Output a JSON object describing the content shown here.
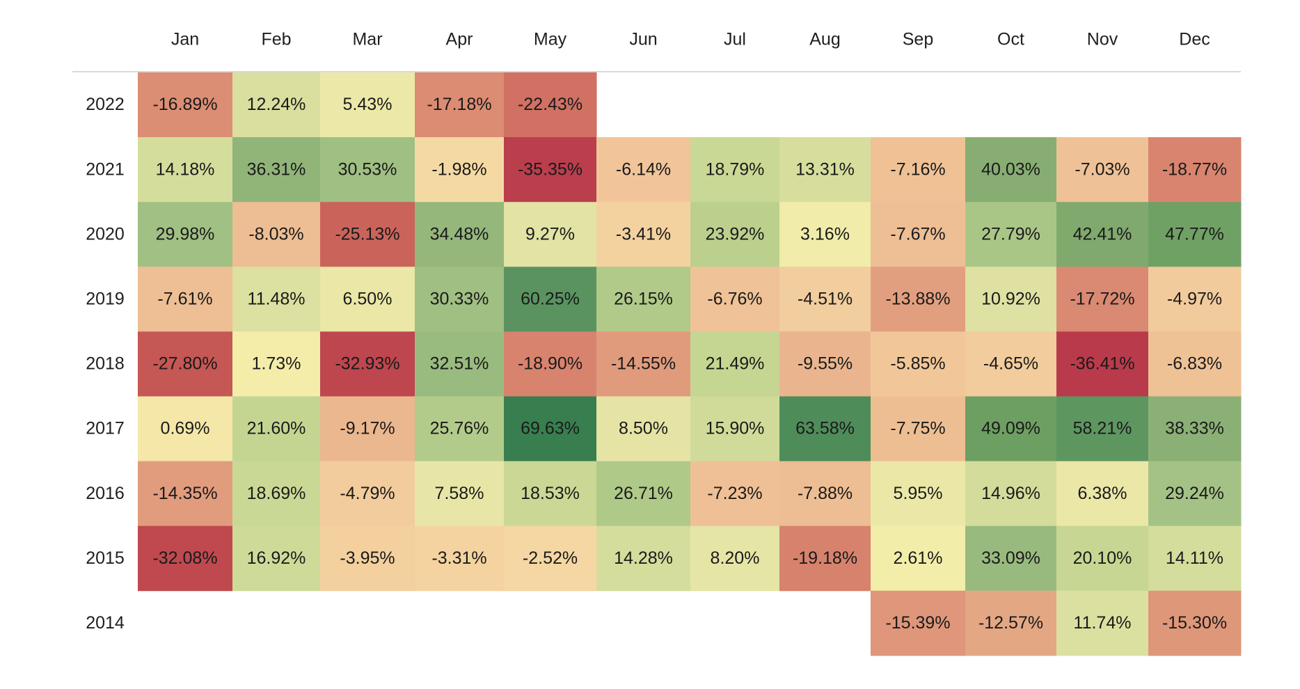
{
  "chart_data": {
    "type": "heatmap",
    "title": "",
    "xlabel": "",
    "ylabel": "",
    "value_format": "percent",
    "columns": [
      "Jan",
      "Feb",
      "Mar",
      "Apr",
      "May",
      "Jun",
      "Jul",
      "Aug",
      "Sep",
      "Oct",
      "Nov",
      "Dec"
    ],
    "rows": [
      "2022",
      "2021",
      "2020",
      "2019",
      "2018",
      "2017",
      "2016",
      "2015",
      "2014"
    ],
    "values": [
      [
        -16.89,
        12.24,
        5.43,
        -17.18,
        -22.43,
        null,
        null,
        null,
        null,
        null,
        null,
        null
      ],
      [
        14.18,
        36.31,
        30.53,
        -1.98,
        -35.35,
        -6.14,
        18.79,
        13.31,
        -7.16,
        40.03,
        -7.03,
        -18.77
      ],
      [
        29.98,
        -8.03,
        -25.13,
        34.48,
        9.27,
        -3.41,
        23.92,
        3.16,
        -7.67,
        27.79,
        42.41,
        47.77
      ],
      [
        -7.61,
        11.48,
        6.5,
        30.33,
        60.25,
        26.15,
        -6.76,
        -4.51,
        -13.88,
        10.92,
        -17.72,
        -4.97
      ],
      [
        -27.8,
        1.73,
        -32.93,
        32.51,
        -18.9,
        -14.55,
        21.49,
        -9.55,
        -5.85,
        -4.65,
        -36.41,
        -6.83
      ],
      [
        0.69,
        21.6,
        -9.17,
        25.76,
        69.63,
        8.5,
        15.9,
        63.58,
        -7.75,
        49.09,
        58.21,
        38.33
      ],
      [
        -14.35,
        18.69,
        -4.79,
        7.58,
        18.53,
        26.71,
        -7.23,
        -7.88,
        5.95,
        14.96,
        6.38,
        29.24
      ],
      [
        -32.08,
        16.92,
        -3.95,
        -3.31,
        -2.52,
        14.28,
        8.2,
        -19.18,
        2.61,
        33.09,
        20.1,
        14.11
      ],
      [
        null,
        null,
        null,
        null,
        null,
        null,
        null,
        null,
        -15.39,
        -12.57,
        11.74,
        -15.3
      ]
    ],
    "labels": [
      [
        "-16.89%",
        "12.24%",
        "5.43%",
        "-17.18%",
        "-22.43%",
        "",
        "",
        "",
        "",
        "",
        "",
        ""
      ],
      [
        "14.18%",
        "36.31%",
        "30.53%",
        "-1.98%",
        "-35.35%",
        "-6.14%",
        "18.79%",
        "13.31%",
        "-7.16%",
        "40.03%",
        "-7.03%",
        "-18.77%"
      ],
      [
        "29.98%",
        "-8.03%",
        "-25.13%",
        "34.48%",
        "9.27%",
        "-3.41%",
        "23.92%",
        "3.16%",
        "-7.67%",
        "27.79%",
        "42.41%",
        "47.77%"
      ],
      [
        "-7.61%",
        "11.48%",
        "6.50%",
        "30.33%",
        "60.25%",
        "26.15%",
        "-6.76%",
        "-4.51%",
        "-13.88%",
        "10.92%",
        "-17.72%",
        "-4.97%"
      ],
      [
        "-27.80%",
        "1.73%",
        "-32.93%",
        "32.51%",
        "-18.90%",
        "-14.55%",
        "21.49%",
        "-9.55%",
        "-5.85%",
        "-4.65%",
        "-36.41%",
        "-6.83%"
      ],
      [
        "0.69%",
        "21.60%",
        "-9.17%",
        "25.76%",
        "69.63%",
        "8.50%",
        "15.90%",
        "63.58%",
        "-7.75%",
        "49.09%",
        "58.21%",
        "38.33%"
      ],
      [
        "-14.35%",
        "18.69%",
        "-4.79%",
        "7.58%",
        "18.53%",
        "26.71%",
        "-7.23%",
        "-7.88%",
        "5.95%",
        "14.96%",
        "6.38%",
        "29.24%"
      ],
      [
        "-32.08%",
        "16.92%",
        "-3.95%",
        "-3.31%",
        "-2.52%",
        "14.28%",
        "8.20%",
        "-19.18%",
        "2.61%",
        "33.09%",
        "20.10%",
        "14.11%"
      ],
      [
        "",
        "",
        "",
        "",
        "",
        "",
        "",
        "",
        "-15.39%",
        "-12.57%",
        "11.74%",
        "-15.30%"
      ]
    ],
    "color_scale": {
      "stops": [
        {
          "value": -37,
          "color": "#b8394a"
        },
        {
          "value": -27,
          "color": "#c65a55"
        },
        {
          "value": -17,
          "color": "#dc8d74"
        },
        {
          "value": -12,
          "color": "#e5aa86"
        },
        {
          "value": -6,
          "color": "#f1c699"
        },
        {
          "value": -2,
          "color": "#f5d9a3"
        },
        {
          "value": 2,
          "color": "#f4eeaa"
        },
        {
          "value": 8,
          "color": "#e6e5a6"
        },
        {
          "value": 14,
          "color": "#d5dd9c"
        },
        {
          "value": 22,
          "color": "#c3d590"
        },
        {
          "value": 30,
          "color": "#a1c084"
        },
        {
          "value": 40,
          "color": "#87ad72"
        },
        {
          "value": 50,
          "color": "#6a9e60"
        },
        {
          "value": 60,
          "color": "#5b9460"
        },
        {
          "value": 70,
          "color": "#377d4e"
        }
      ]
    },
    "header_rule_color": "#d9d9d9"
  }
}
